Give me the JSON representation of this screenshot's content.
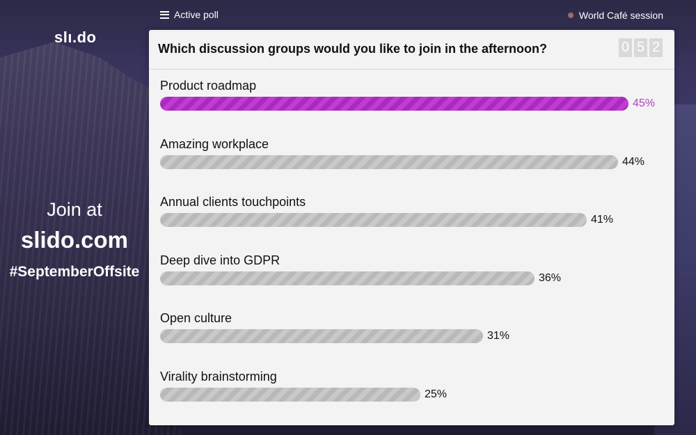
{
  "brand": {
    "logo": "slı.do"
  },
  "join": {
    "prefix": "Join at",
    "url": "slido.com",
    "hashtag": "#SeptemberOffsite"
  },
  "topbar": {
    "active_poll_label": "Active poll",
    "session_label": "World Café session"
  },
  "poll": {
    "question": "Which discussion groups would you like to join in the afternoon?",
    "counter_digits": [
      "0",
      "5",
      "2"
    ],
    "options": [
      {
        "label": "Product roadmap",
        "percent_text": "45%",
        "value": 45,
        "winner": true
      },
      {
        "label": "Amazing workplace",
        "percent_text": "44%",
        "value": 44,
        "winner": false
      },
      {
        "label": "Annual clients touchpoints",
        "percent_text": "41%",
        "value": 41,
        "winner": false
      },
      {
        "label": "Deep dive into GDPR",
        "percent_text": "36%",
        "value": 36,
        "winner": false
      },
      {
        "label": "Open culture",
        "percent_text": "31%",
        "value": 31,
        "winner": false
      },
      {
        "label": "Virality brainstorming",
        "percent_text": "25%",
        "value": 25,
        "winner": false
      }
    ]
  },
  "colors": {
    "accent": "#b23cc8",
    "bar_gray": "#c4c4c4"
  }
}
